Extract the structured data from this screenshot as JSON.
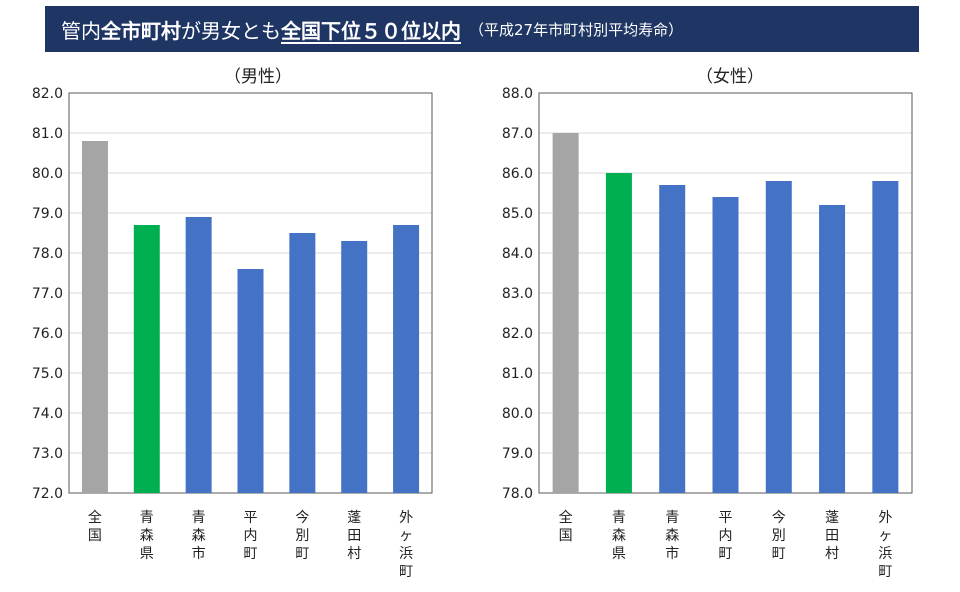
{
  "header": {
    "part1": "管内",
    "part2": "全市町村",
    "part3": "が男女とも",
    "part4": "全国下位５０位以内",
    "part5": "（平成27年市町村別平均寿命）"
  },
  "colors": {
    "banner": "#1f3564",
    "national": "#a5a5a5",
    "prefecture": "#00b050",
    "municipality": "#4472c4",
    "grid": "#d9d9d9"
  },
  "chart_data": [
    {
      "type": "bar",
      "title": "（男性）",
      "categories": [
        "全国",
        "青森県",
        "青森市",
        "平内町",
        "今別町",
        "蓬田村",
        "外ヶ浜町"
      ],
      "values": [
        80.8,
        78.7,
        78.9,
        77.6,
        78.5,
        78.3,
        78.7
      ],
      "bar_colors": [
        "#a5a5a5",
        "#00b050",
        "#4472c4",
        "#4472c4",
        "#4472c4",
        "#4472c4",
        "#4472c4"
      ],
      "ylim": [
        72.0,
        82.0
      ],
      "yticks": [
        "72.0",
        "73.0",
        "74.0",
        "75.0",
        "76.0",
        "77.0",
        "78.0",
        "79.0",
        "80.0",
        "81.0",
        "82.0"
      ],
      "grid": true,
      "xlabel": "",
      "ylabel": ""
    },
    {
      "type": "bar",
      "title": "（女性）",
      "categories": [
        "全国",
        "青森県",
        "青森市",
        "平内町",
        "今別町",
        "蓬田村",
        "外ヶ浜町"
      ],
      "values": [
        87.0,
        86.0,
        85.7,
        85.4,
        85.8,
        85.2,
        85.8
      ],
      "bar_colors": [
        "#a5a5a5",
        "#00b050",
        "#4472c4",
        "#4472c4",
        "#4472c4",
        "#4472c4",
        "#4472c4"
      ],
      "ylim": [
        78.0,
        88.0
      ],
      "yticks": [
        "78.0",
        "79.0",
        "80.0",
        "81.0",
        "82.0",
        "83.0",
        "84.0",
        "85.0",
        "86.0",
        "87.0",
        "88.0"
      ],
      "grid": true,
      "xlabel": "",
      "ylabel": ""
    }
  ]
}
